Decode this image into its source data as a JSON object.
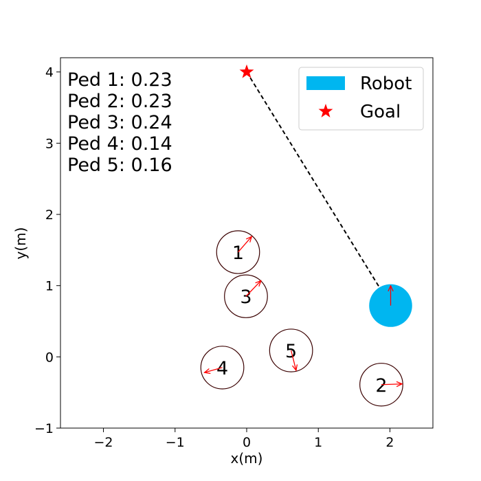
{
  "chart_data": {
    "type": "scatter",
    "xlabel": "x(m)",
    "ylabel": "y(m)",
    "xlim": [
      -2.6,
      2.6
    ],
    "ylim": [
      -1.0,
      4.2
    ],
    "xticks": [
      -2,
      -1,
      0,
      1,
      2
    ],
    "xtick_labels": [
      "−2",
      "−1",
      "0",
      "1",
      "2"
    ],
    "yticks": [
      -1,
      0,
      1,
      2,
      3,
      4
    ],
    "ytick_labels": [
      "−1",
      "0",
      "1",
      "2",
      "3",
      "4"
    ],
    "grid": false,
    "legend": {
      "placement": "top-right",
      "entries": [
        {
          "label": "Robot",
          "color": "#00b6f0",
          "marker": "patch"
        },
        {
          "label": "Goal",
          "color": "#ff0000",
          "marker": "star"
        }
      ]
    },
    "annotations": [
      "Ped 1: 0.23",
      "Ped 2: 0.23",
      "Ped 3: 0.24",
      "Ped 4: 0.14",
      "Ped 5: 0.16"
    ],
    "robot": {
      "x": 2.01,
      "y": 0.72,
      "radius": 0.3,
      "color": "#00b6f0",
      "velocity": {
        "dx": 0.0,
        "dy": 0.28
      }
    },
    "goal": {
      "x": 0.0,
      "y": 4.0,
      "color": "#ff0000"
    },
    "path_line": {
      "from": [
        0.0,
        4.0
      ],
      "to": [
        2.01,
        0.72
      ],
      "style": "dashed",
      "color": "#000000"
    },
    "pedestrians": [
      {
        "label": "1",
        "x": -0.12,
        "y": 1.47,
        "radius": 0.3,
        "velocity": {
          "dx": 0.19,
          "dy": 0.22
        }
      },
      {
        "label": "2",
        "x": 1.88,
        "y": -0.39,
        "radius": 0.3,
        "velocity": {
          "dx": 0.29,
          "dy": 0.01
        }
      },
      {
        "label": "3",
        "x": -0.01,
        "y": 0.85,
        "radius": 0.3,
        "velocity": {
          "dx": 0.21,
          "dy": 0.22
        }
      },
      {
        "label": "4",
        "x": -0.34,
        "y": -0.15,
        "radius": 0.3,
        "velocity": {
          "dx": -0.25,
          "dy": -0.07
        }
      },
      {
        "label": "5",
        "x": 0.62,
        "y": 0.09,
        "radius": 0.3,
        "velocity": {
          "dx": 0.07,
          "dy": -0.28
        }
      }
    ],
    "pedestrian_edge_color": "#3a0000",
    "velocity_arrow_color": "#ff0000"
  }
}
